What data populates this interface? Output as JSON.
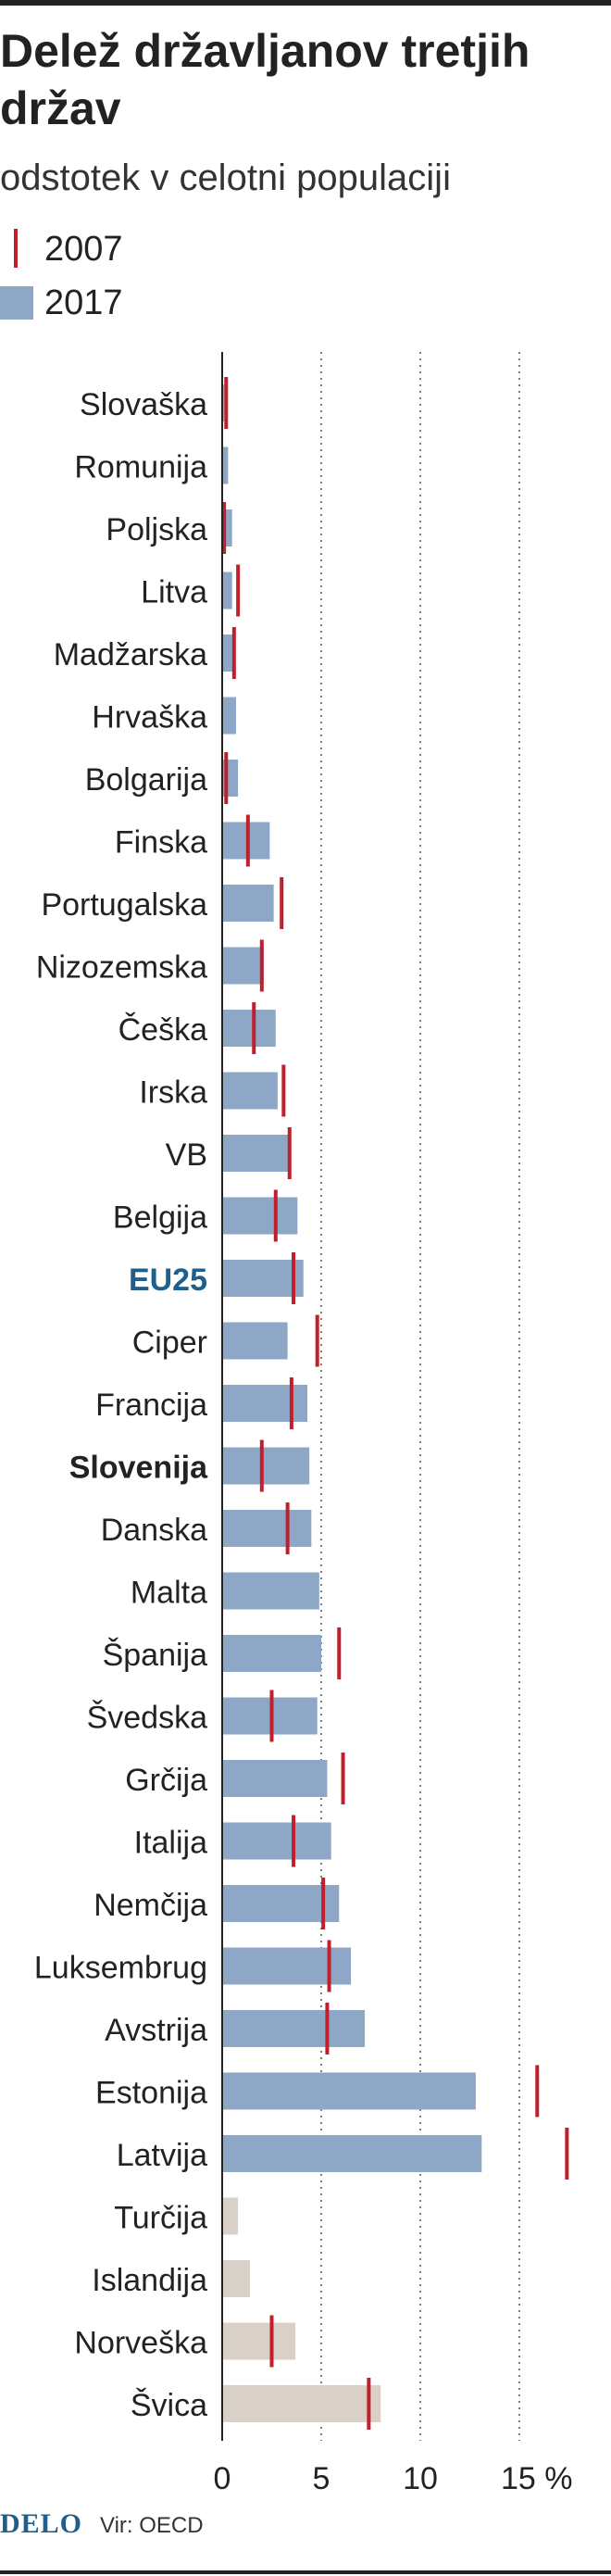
{
  "title": "Delež državljanov tretjih držav",
  "subtitle": "odstotek v celotni populaciji",
  "legend": {
    "item_2007": "2007",
    "item_2017": "2017"
  },
  "footer": {
    "logo": "DELO",
    "source": "Vir: OECD"
  },
  "colors": {
    "bar_eu": "#8ea7c7",
    "bar_non_eu": "#d9d1c7",
    "marker_2007": "#c0202c",
    "highlight_eu25": "#1f5f8b"
  },
  "chart_data": {
    "type": "bar",
    "orientation": "horizontal",
    "xlim": [
      0,
      17.5
    ],
    "x_ticks": [
      "0",
      "5",
      "10",
      "15 %"
    ],
    "x_tick_values": [
      0,
      5,
      10,
      15
    ],
    "grid": "dotted vertical at 5, 10, 15",
    "categories": [
      "Slovaška",
      "Romunija",
      "Poljska",
      "Litva",
      "Madžarska",
      "Hrvaška",
      "Bolgarija",
      "Finska",
      "Portugalska",
      "Nizozemska",
      "Češka",
      "Irska",
      "VB",
      "Belgija",
      "EU25",
      "Ciper",
      "Francija",
      "Slovenija",
      "Danska",
      "Malta",
      "Španija",
      "Švedska",
      "Grčija",
      "Italija",
      "Nemčija",
      "Luksembrug",
      "Avstrija",
      "Estonija",
      "Latvija",
      "Turčija",
      "Islandija",
      "Norveška",
      "Švica"
    ],
    "series": [
      {
        "name": "2017",
        "values": [
          0.1,
          0.3,
          0.5,
          0.5,
          0.6,
          0.7,
          0.8,
          2.4,
          2.6,
          2.1,
          2.7,
          2.8,
          3.4,
          3.8,
          4.1,
          3.3,
          4.3,
          4.4,
          4.5,
          4.9,
          5.0,
          4.8,
          5.3,
          5.5,
          5.9,
          6.5,
          7.2,
          12.8,
          13.1,
          0.8,
          1.4,
          3.7,
          8.0
        ]
      },
      {
        "name": "2007",
        "values": [
          0.2,
          null,
          0.1,
          0.8,
          0.6,
          null,
          0.2,
          1.3,
          3.0,
          2.0,
          1.6,
          3.1,
          3.4,
          2.7,
          3.6,
          4.8,
          3.5,
          2.0,
          3.3,
          null,
          5.9,
          2.5,
          6.1,
          3.6,
          5.1,
          5.4,
          5.3,
          15.9,
          17.4,
          null,
          null,
          2.5,
          7.4
        ]
      }
    ],
    "category_style": [
      "normal",
      "normal",
      "normal",
      "normal",
      "normal",
      "normal",
      "normal",
      "normal",
      "normal",
      "normal",
      "normal",
      "normal",
      "normal",
      "normal",
      "eu25",
      "normal",
      "normal",
      "bold",
      "normal",
      "normal",
      "normal",
      "normal",
      "normal",
      "normal",
      "normal",
      "normal",
      "normal",
      "normal",
      "normal",
      "non_eu",
      "non_eu",
      "non_eu",
      "non_eu"
    ]
  }
}
